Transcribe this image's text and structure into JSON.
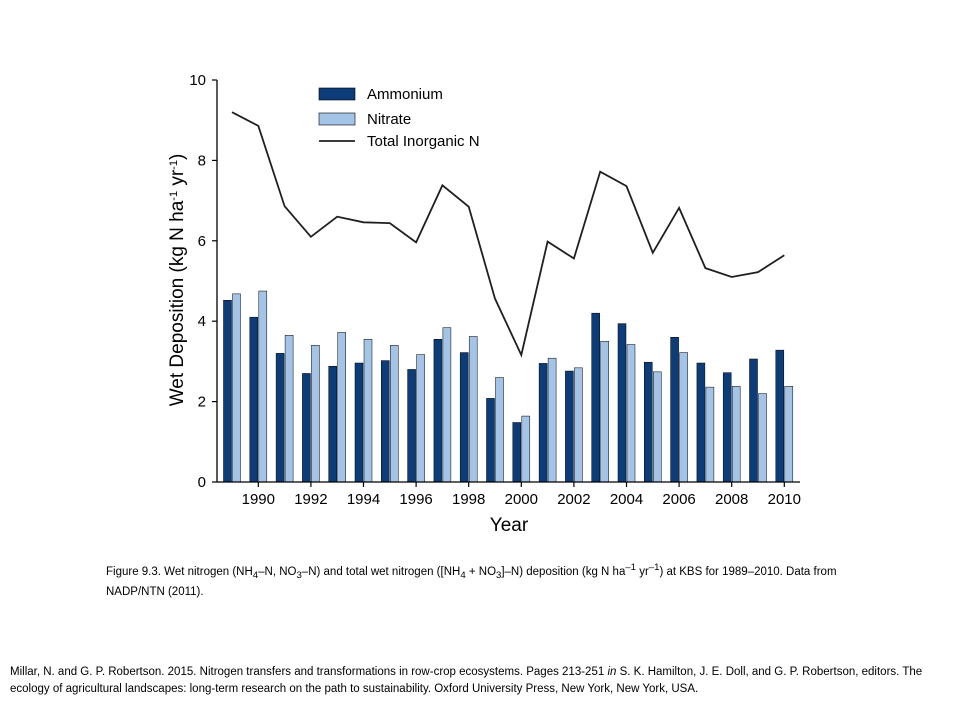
{
  "chart_data": {
    "type": "bar",
    "xlabel": "Year",
    "ylabel": "Wet Deposition (kg N ha",
    "ylabel_sup1": "-1",
    "ylabel_mid": " yr",
    "ylabel_sup2": "-1",
    "ylabel_end": ")",
    "ylim": [
      0,
      10
    ],
    "yticks": [
      0,
      2,
      4,
      6,
      8,
      10
    ],
    "xticks": [
      1990,
      1992,
      1994,
      1996,
      1998,
      2000,
      2002,
      2004,
      2006,
      2008,
      2010
    ],
    "years": [
      1989,
      1990,
      1991,
      1992,
      1993,
      1994,
      1995,
      1996,
      1997,
      1998,
      1999,
      2000,
      2001,
      2002,
      2003,
      2004,
      2005,
      2006,
      2007,
      2008,
      2009,
      2010
    ],
    "series": [
      {
        "name": "Ammonium",
        "kind": "bar",
        "color": "#0d3d79",
        "values": [
          4.52,
          4.1,
          3.2,
          2.7,
          2.88,
          2.96,
          3.02,
          2.8,
          3.55,
          3.22,
          2.08,
          1.48,
          2.95,
          2.76,
          4.2,
          3.94,
          2.98,
          3.6,
          2.96,
          2.72,
          3.06,
          3.28
        ]
      },
      {
        "name": "Nitrate",
        "kind": "bar",
        "color": "#a3c4e6",
        "values": [
          4.68,
          4.75,
          3.65,
          3.4,
          3.72,
          3.55,
          3.4,
          3.17,
          3.84,
          3.62,
          2.6,
          1.64,
          3.08,
          2.84,
          3.5,
          3.42,
          2.74,
          3.22,
          2.36,
          2.38,
          2.2,
          2.38
        ]
      },
      {
        "name": "Total Inorganic N",
        "kind": "line",
        "color": "#1f1f1f",
        "values": [
          9.2,
          8.86,
          6.86,
          6.1,
          6.6,
          6.46,
          6.44,
          5.96,
          7.38,
          6.85,
          4.56,
          3.16,
          5.98,
          5.56,
          7.72,
          7.36,
          5.7,
          6.82,
          5.32,
          5.1,
          5.22,
          5.64
        ]
      }
    ],
    "legend_position": "top-center",
    "grid": false
  },
  "caption": {
    "p1": "Figure 9.3.  Wet nitrogen (NH",
    "s1": "4",
    "p2": "–N, NO",
    "s2": "3",
    "p3": "–N) and total wet nitrogen ([NH",
    "s3": "4",
    "p4": " + NO",
    "s4": "3",
    "p5": "]–N) deposition (kg N ha",
    "s5": "–1",
    "p6": " yr",
    "s6": "–1",
    "p7": ") at KBS for 1989–2010.  Data from NADP/NTN (2011)."
  },
  "citation": {
    "p1": "Millar, N. and G. P. Robertson. 2015. Nitrogen transfers and transformations in row-crop ecosystems. Pages 213-251 ",
    "italic": "in",
    "p2": " S. K. Hamilton, J. E. Doll, and G. P. Robertson, editors. The ecology of agricultural landscapes: long-term research on the path to sustainability. Oxford University Press, New York, New York, USA."
  }
}
